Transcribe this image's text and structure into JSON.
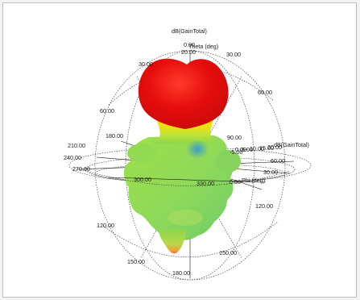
{
  "chart_data": {
    "type": "3d-polar-radiation-pattern",
    "quantity": "dB(GainTotal)",
    "theta_axis_label": "Theta (deg)",
    "phi_axis_label": "Phi (deg)",
    "radial_axis_label": "dB(GainTotal)",
    "theta_tick_labels": [
      "0.00",
      "20.00",
      "30.00",
      "30.00",
      "60.00",
      "60.00",
      "90.00",
      "120.00",
      "120.00",
      "150.00",
      "150.00",
      "180.00"
    ],
    "phi_tick_labels": [
      "180.00",
      "210.00",
      "240.00",
      "270.00",
      "300.00",
      "330.00",
      "0.00",
      "30.00",
      "60.00"
    ],
    "radial_tick_labels": [
      "-5.00",
      "0.00",
      "5.00",
      "10.00",
      "15.00",
      "20.00"
    ],
    "color_scale": {
      "high": "#e60d0d",
      "upper_mid": "#f7e20a",
      "mid": "#9fe04a",
      "low": "#5fcf6a",
      "lowest": "#2f8fe0"
    },
    "grid": true,
    "legend": "none"
  }
}
